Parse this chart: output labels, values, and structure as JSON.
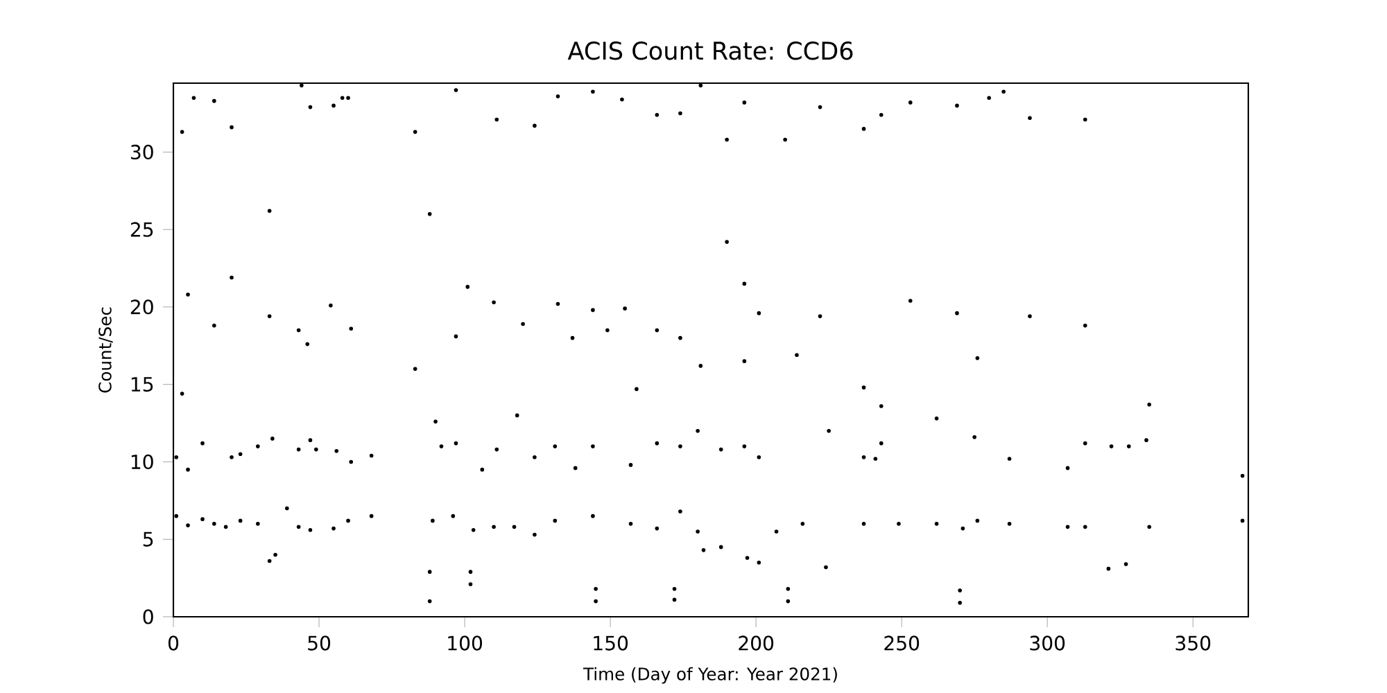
{
  "chart_data": {
    "type": "scatter",
    "title": "ACIS Count Rate: CCD6",
    "xlabel": "Time (Day of Year: Year 2021)",
    "ylabel": "Count/Sec",
    "xlim": [
      0,
      369
    ],
    "ylim": [
      0,
      34.45
    ],
    "xticks": [
      0,
      50,
      100,
      150,
      200,
      250,
      300,
      350
    ],
    "yticks": [
      0,
      5,
      10,
      15,
      20,
      25,
      30
    ],
    "grid": false,
    "series": [
      {
        "color": "#000000",
        "x": [
          1,
          1,
          5,
          5,
          10,
          10,
          14,
          18,
          20,
          23,
          23,
          29,
          29,
          33,
          34,
          35,
          39,
          43,
          43,
          47,
          47,
          49,
          55,
          56,
          60,
          61,
          68,
          68,
          88,
          88,
          89,
          90,
          92,
          96,
          97,
          102,
          102,
          103,
          106,
          110,
          111,
          117,
          118,
          124,
          124,
          131,
          131,
          138,
          145,
          145,
          144,
          144,
          157,
          157,
          166,
          166,
          172,
          172,
          174,
          174,
          180,
          180,
          182,
          188,
          188,
          196,
          196,
          197,
          201,
          201,
          207,
          211,
          211,
          216,
          224,
          225,
          237,
          237,
          241,
          243,
          249,
          262,
          262,
          270,
          270,
          271,
          275,
          276,
          287,
          287,
          307,
          307,
          313,
          313,
          321,
          322,
          327,
          328,
          334,
          335,
          335,
          367,
          367,
          3,
          3,
          5,
          7,
          14,
          14,
          20,
          20,
          33,
          33,
          43,
          44,
          46,
          47,
          54,
          55,
          58,
          61,
          60,
          83,
          83,
          88,
          97,
          97,
          101,
          111,
          110,
          120,
          124,
          132,
          132,
          137,
          144,
          144,
          149,
          154,
          155,
          159,
          166,
          166,
          174,
          174,
          181,
          181,
          190,
          190,
          196,
          196,
          201,
          210,
          214,
          222,
          222,
          237,
          237,
          243,
          243,
          253,
          253,
          269,
          269,
          276,
          280,
          285,
          294,
          294,
          313,
          313
        ],
        "values": [
          6.5,
          10.3,
          5.9,
          9.5,
          6.3,
          11.2,
          6,
          5.8,
          10.3,
          6.2,
          10.5,
          6,
          11,
          3.6,
          11.5,
          4,
          7,
          5.8,
          10.8,
          5.6,
          11.4,
          10.8,
          5.7,
          10.7,
          6.2,
          10,
          6.5,
          10.4,
          1,
          2.9,
          6.2,
          12.6,
          11,
          6.5,
          11.2,
          2.1,
          2.9,
          5.6,
          9.5,
          5.8,
          10.8,
          5.8,
          13,
          5.3,
          10.3,
          6.2,
          11,
          9.6,
          1,
          1.8,
          6.5,
          11,
          6,
          9.8,
          5.7,
          11.2,
          1.1,
          1.8,
          6.8,
          11,
          5.5,
          12,
          4.3,
          4.5,
          10.8,
          16.5,
          11,
          3.8,
          3.5,
          10.3,
          5.5,
          1,
          1.8,
          6,
          3.2,
          12,
          6,
          10.3,
          10.2,
          11.2,
          6,
          12.8,
          6,
          0.9,
          1.7,
          5.7,
          11.6,
          6.2,
          6,
          10.2,
          5.8,
          9.6,
          11.2,
          5.8,
          3.1,
          11,
          3.4,
          11,
          11.4,
          13.7,
          5.8,
          6.2,
          9.1,
          14.4,
          31.3,
          20.8,
          33.5,
          18.8,
          33.3,
          21.9,
          31.6,
          19.4,
          26.2,
          18.5,
          34.3,
          17.6,
          32.9,
          20.1,
          33,
          33.5,
          18.6,
          33.5,
          16,
          31.3,
          26,
          34,
          18.1,
          21.3,
          32.1,
          20.3,
          18.9,
          31.7,
          20.2,
          33.6,
          18,
          19.8,
          33.9,
          18.5,
          33.4,
          19.9,
          14.7,
          18.5,
          32.4,
          18,
          32.5,
          34.3,
          16.2,
          24.2,
          30.8,
          21.5,
          33.2,
          19.6,
          30.8,
          16.9,
          19.4,
          32.9,
          14.8,
          31.5,
          32.4,
          13.6,
          33.2,
          20.4,
          33,
          19.6,
          16.7,
          33.5,
          33.9,
          32.2,
          19.4,
          18.8,
          32.1
        ]
      }
    ]
  }
}
